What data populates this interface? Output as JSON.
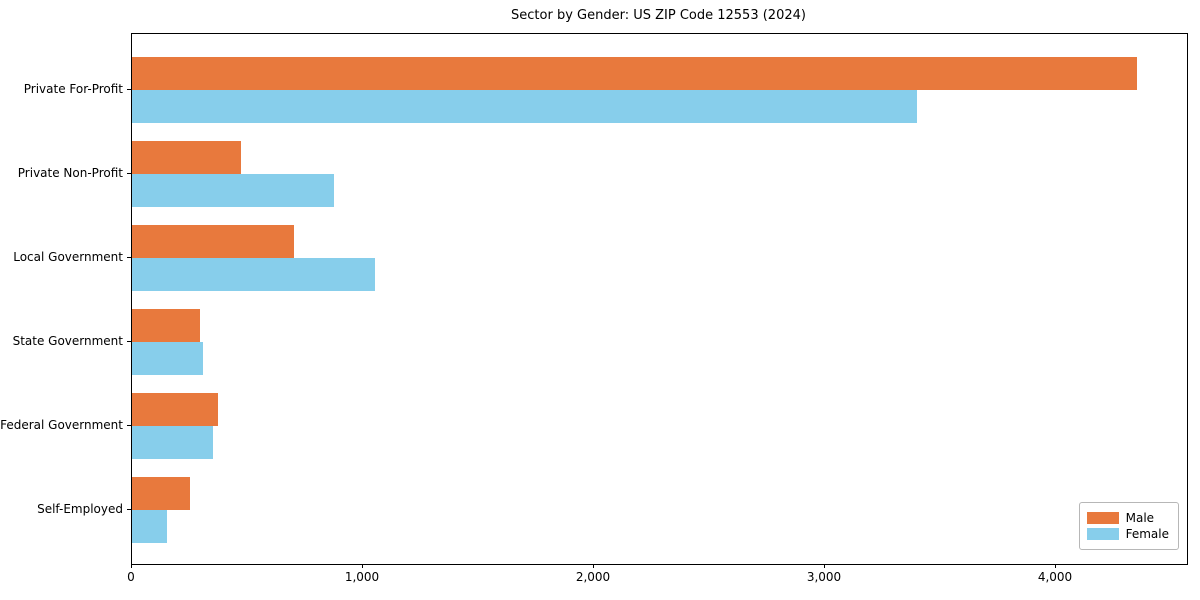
{
  "chart_data": {
    "type": "bar",
    "orientation": "horizontal",
    "title": "Sector by Gender: US ZIP Code 12553 (2024)",
    "categories": [
      "Private For-Profit",
      "Private Non-Profit",
      "Local Government",
      "State Government",
      "Federal Government",
      "Self-Employed"
    ],
    "series": [
      {
        "name": "Male",
        "color": "#E8793D",
        "values": [
          4350,
          470,
          700,
          295,
          370,
          250
        ]
      },
      {
        "name": "Female",
        "color": "#87CEEB",
        "values": [
          3400,
          875,
          1050,
          305,
          350,
          150
        ]
      }
    ],
    "xlabel": "",
    "ylabel": "",
    "xlim": [
      0,
      4567
    ],
    "x_ticks": [
      0,
      1000,
      2000,
      3000,
      4000
    ],
    "x_tick_labels": [
      "0",
      "1,000",
      "2,000",
      "3,000",
      "4,000"
    ],
    "grid": false,
    "legend": {
      "position": "lower right",
      "entries": [
        "Male",
        "Female"
      ]
    }
  }
}
